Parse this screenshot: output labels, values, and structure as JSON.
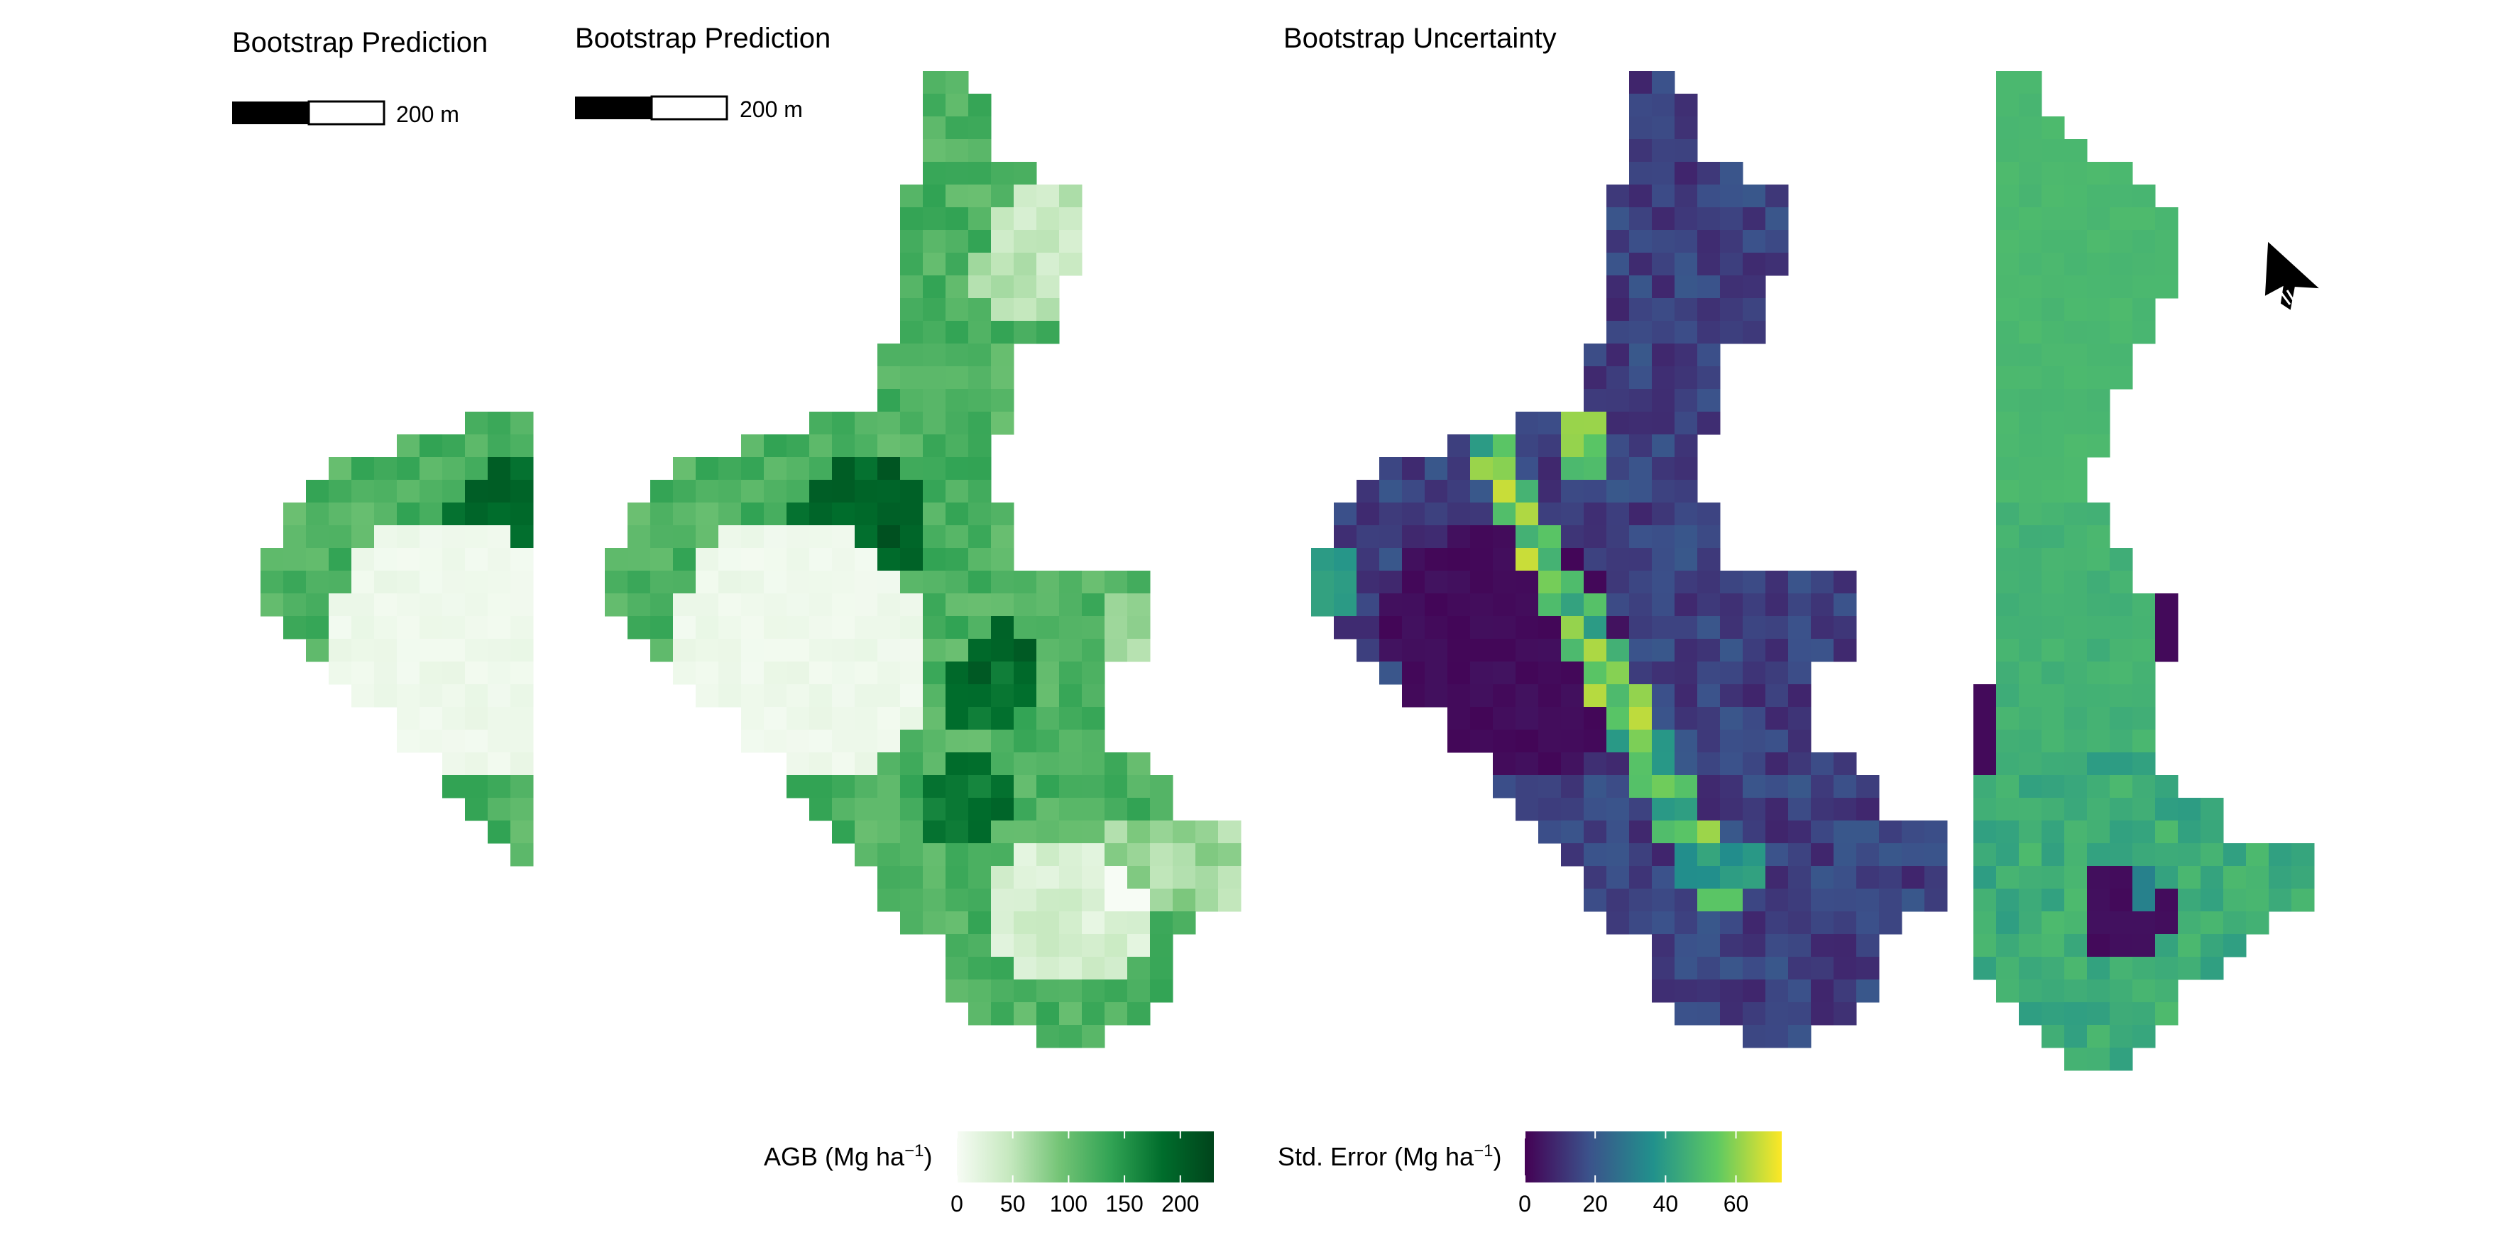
{
  "panels": [
    {
      "title": "Bootstrap Prediction",
      "scalebar_label": "200 m"
    },
    {
      "title": "Bootstrap Prediction",
      "scalebar_label": "200 m"
    },
    {
      "title": "Bootstrap Uncertainty"
    }
  ],
  "legends": {
    "agb": {
      "title": "AGB (Mg ha",
      "exponent": "−1",
      "close": ")",
      "ticks": [
        "0",
        "50",
        "100",
        "150",
        "200"
      ],
      "range": [
        0,
        230
      ],
      "colors": [
        "#f7fcf5",
        "#c7e9c0",
        "#74c476",
        "#31a354",
        "#006d2c",
        "#00441b"
      ]
    },
    "se": {
      "title": "Std. Error (Mg ha",
      "exponent": "−1",
      "close": ")",
      "ticks": [
        "0",
        "20",
        "40",
        "60"
      ],
      "range": [
        0,
        73
      ],
      "colors": [
        "#440154",
        "#3b528b",
        "#21918c",
        "#5ec962",
        "#fde725"
      ]
    }
  },
  "cursor": "arrow-cursor-icon",
  "chart_data": [
    {
      "type": "heatmap",
      "title": "Bootstrap Prediction",
      "value_label": "AGB (Mg ha-1)",
      "value_range": [
        0,
        230
      ],
      "palette": "Greens",
      "description_values": {
        "low_patch": 10,
        "typical": 130,
        "high": 210
      }
    },
    {
      "type": "heatmap",
      "title": "Bootstrap Prediction",
      "value_label": "AGB (Mg ha-1)",
      "value_range": [
        0,
        230
      ],
      "palette": "Greens"
    },
    {
      "type": "heatmap",
      "title": "Bootstrap Uncertainty",
      "value_label": "Std. Error (Mg ha-1)",
      "value_range": [
        0,
        73
      ],
      "palette": "viridis"
    },
    {
      "type": "heatmap",
      "title": "",
      "value_label": "Std. Error (Mg ha-1)",
      "value_range": [
        0,
        73
      ],
      "palette": "viridis"
    }
  ]
}
